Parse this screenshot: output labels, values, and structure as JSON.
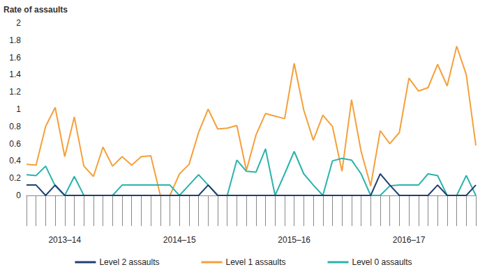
{
  "chart_data": {
    "type": "line",
    "ylabel": "Rate of assaults",
    "categories": [
      null,
      null,
      null,
      null,
      "2013–14",
      null,
      null,
      null,
      null,
      null,
      null,
      null,
      null,
      null,
      null,
      null,
      "2014–15",
      null,
      null,
      null,
      null,
      null,
      null,
      null,
      null,
      null,
      null,
      null,
      "2015–16",
      null,
      null,
      null,
      null,
      null,
      null,
      null,
      null,
      null,
      null,
      null,
      "2016–17",
      null,
      null,
      null,
      null,
      null,
      null,
      null
    ],
    "series": [
      {
        "name": "Level 2 assaults",
        "color": "#1f3f73",
        "values": [
          0.12,
          0.12,
          0,
          0.12,
          0,
          0,
          0,
          0,
          0,
          0,
          0,
          0,
          0,
          0,
          0,
          0,
          0,
          0,
          0,
          0.12,
          0,
          0,
          0,
          0,
          0,
          0,
          0,
          0,
          0,
          0,
          0,
          0,
          0,
          0,
          0,
          0,
          0,
          0.25,
          0.12,
          0,
          0,
          0,
          0,
          0.12,
          0,
          0,
          0,
          0.12
        ]
      },
      {
        "name": "Level 1 assaults",
        "color": "#f5a03a",
        "values": [
          0.36,
          0.35,
          0.8,
          1.02,
          0.45,
          0.91,
          0.34,
          0.22,
          0.56,
          0.34,
          0.45,
          0.35,
          0.45,
          0.46,
          0,
          0,
          0.25,
          0.36,
          0.73,
          1.0,
          0.77,
          0.78,
          0.81,
          0.29,
          0.7,
          0.95,
          0.92,
          0.89,
          1.53,
          0.99,
          0.64,
          0.93,
          0.8,
          0.28,
          1.11,
          0.51,
          0.11,
          0.75,
          0.6,
          0.73,
          1.36,
          1.21,
          1.25,
          1.52,
          1.27,
          1.73,
          1.4,
          0.58
        ]
      },
      {
        "name": "Level 0 assaults",
        "color": "#2ab3ab",
        "values": [
          0.24,
          0.23,
          0.34,
          0.11,
          0,
          0.22,
          0,
          0,
          0,
          0,
          0.12,
          0.12,
          0.12,
          0.12,
          0.12,
          0.12,
          0,
          0.12,
          0.24,
          0.12,
          0,
          0,
          0.41,
          0.28,
          0.27,
          0.54,
          0,
          0.25,
          0.51,
          0.25,
          0.12,
          0,
          0.4,
          0.43,
          0.41,
          0.25,
          0,
          0,
          0.11,
          0.12,
          0.12,
          0.12,
          0.25,
          0.23,
          0,
          0,
          0.23,
          0
        ]
      }
    ],
    "ylim": [
      0,
      2
    ],
    "yticks": [
      0,
      0.2,
      0.4,
      0.6,
      0.8,
      1,
      1.2,
      1.4,
      1.6,
      1.8,
      2
    ],
    "grid": false,
    "legend": "bottom"
  }
}
